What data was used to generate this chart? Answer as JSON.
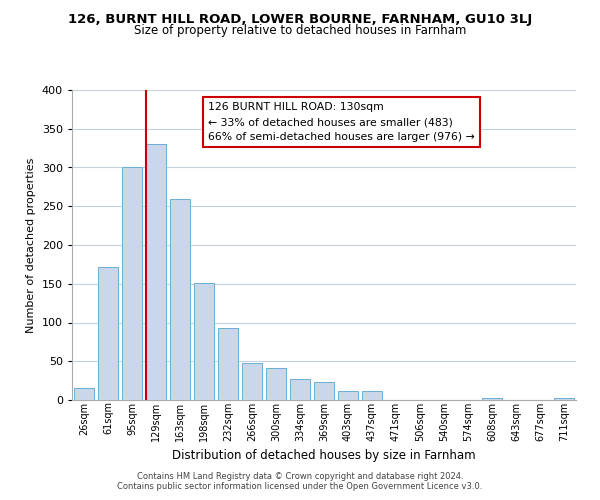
{
  "title": "126, BURNT HILL ROAD, LOWER BOURNE, FARNHAM, GU10 3LJ",
  "subtitle": "Size of property relative to detached houses in Farnham",
  "xlabel": "Distribution of detached houses by size in Farnham",
  "ylabel": "Number of detached properties",
  "bar_labels": [
    "26sqm",
    "61sqm",
    "95sqm",
    "129sqm",
    "163sqm",
    "198sqm",
    "232sqm",
    "266sqm",
    "300sqm",
    "334sqm",
    "369sqm",
    "403sqm",
    "437sqm",
    "471sqm",
    "506sqm",
    "540sqm",
    "574sqm",
    "608sqm",
    "643sqm",
    "677sqm",
    "711sqm"
  ],
  "bar_heights": [
    15,
    172,
    301,
    330,
    259,
    151,
    93,
    48,
    41,
    27,
    23,
    12,
    11,
    0,
    0,
    0,
    0,
    3,
    0,
    0,
    3
  ],
  "bar_color": "#c8d8ea",
  "bar_edge_color": "#6baed6",
  "marker_bar_index": 3,
  "marker_line_color": "#cc0000",
  "ylim": [
    0,
    400
  ],
  "yticks": [
    0,
    50,
    100,
    150,
    200,
    250,
    300,
    350,
    400
  ],
  "annotation_title": "126 BURNT HILL ROAD: 130sqm",
  "annotation_line1": "← 33% of detached houses are smaller (483)",
  "annotation_line2": "66% of semi-detached houses are larger (976) →",
  "annotation_box_color": "#ffffff",
  "annotation_box_edge": "#cc0000",
  "footer_line1": "Contains HM Land Registry data © Crown copyright and database right 2024.",
  "footer_line2": "Contains public sector information licensed under the Open Government Licence v3.0.",
  "background_color": "#ffffff",
  "grid_color": "#c8d0dc"
}
